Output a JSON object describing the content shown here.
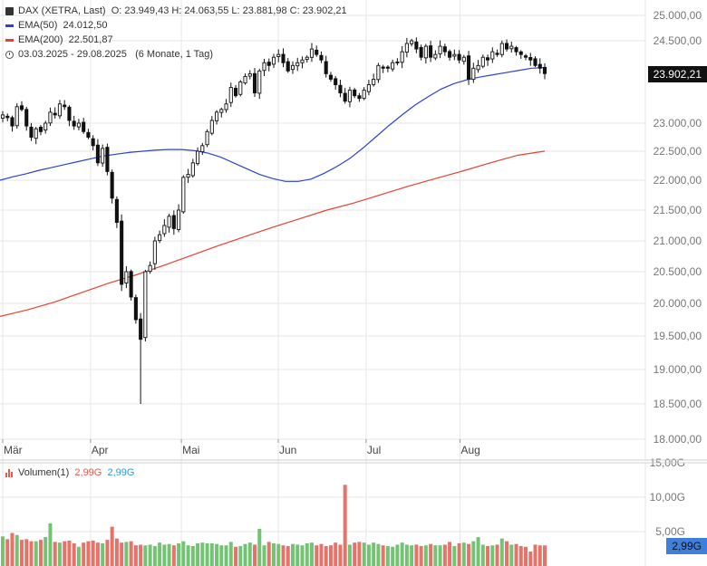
{
  "header": {
    "instrument": "DAX (XETRA, Last)",
    "ohlc": "O: 23.949,43  H: 24.063,55  L: 23.881,98  C: 23.902,21",
    "ema50_label": "EMA(50)",
    "ema50_value": "24.012,50",
    "ema200_label": "EMA(200)",
    "ema200_value": "22.501,87",
    "range": "03.03.2025 - 29.08.2025",
    "period": "(6 Monate, 1 Tag)"
  },
  "last_price_label": "23.902,21",
  "volume_panel": {
    "label": "Volumen(1)",
    "value_red": "2,99G",
    "value_blue": "2,99G",
    "last_volume_label": "2,99G"
  },
  "colors": {
    "up": "#5cb85c",
    "down": "#e05a4f",
    "candle": "#111111",
    "ema50": "#2a41d8",
    "ema200": "#e8412f",
    "grid": "#e6e6e6",
    "axis_text": "#777777"
  },
  "chart_data": {
    "type": "candlestick",
    "title": "DAX (XETRA, Last)",
    "y_ticks": [
      "25.000,00",
      "24.500,00",
      "23.000,00",
      "22.500,00",
      "22.000,00",
      "21.500,00",
      "21.000,00",
      "20.500,00",
      "20.000,00",
      "19.500,00",
      "19.000,00",
      "18.500,00",
      "18.000,00"
    ],
    "y_tick_values": [
      25000,
      24500,
      23000,
      22500,
      22000,
      21500,
      21000,
      20500,
      20000,
      19500,
      19000,
      18500,
      18000
    ],
    "x_ticks": [
      {
        "label": "Mär",
        "date": "2025-03-03"
      },
      {
        "label": "Apr",
        "date": "2025-04-01"
      },
      {
        "label": "Mai",
        "date": "2025-05-01"
      },
      {
        "label": "Jun",
        "date": "2025-06-02"
      },
      {
        "label": "Jul",
        "date": "2025-07-01"
      },
      {
        "label": "Aug",
        "date": "2025-08-01"
      }
    ],
    "date_range": [
      "2025-03-03",
      "2025-08-29"
    ],
    "series": [
      {
        "name": "DAX",
        "type": "candlestick",
        "close": [
          23150,
          23100,
          22950,
          23300,
          23250,
          22950,
          22750,
          22900,
          22850,
          23000,
          23200,
          23150,
          23350,
          23300,
          23050,
          22950,
          23000,
          22850,
          22750,
          22600,
          22300,
          22550,
          22150,
          21700,
          21300,
          20300,
          20500,
          20100,
          19750,
          19450,
          20500,
          20600,
          21000,
          21100,
          21250,
          21400,
          21200,
          21500,
          22050,
          22100,
          22300,
          22500,
          22600,
          22850,
          23050,
          23200,
          23250,
          23350,
          23650,
          23500,
          23750,
          23850,
          23900,
          23550,
          23950,
          24100,
          24050,
          24200,
          24250,
          24100,
          23950,
          24050,
          24100,
          24150,
          24200,
          24350,
          24250,
          24150,
          23900,
          23800,
          23700,
          23550,
          23400,
          23600,
          23500,
          23450,
          23600,
          23700,
          23800,
          24050,
          24000,
          24000,
          24100,
          24100,
          24300,
          24450,
          24500,
          24350,
          24200,
          24400,
          24200,
          24250,
          24400,
          24300,
          24200,
          24250,
          24150,
          24200,
          23800,
          24000,
          24050,
          24200,
          24150,
          24300,
          24250,
          24450,
          24350,
          24400,
          24300,
          24250,
          24200,
          24150,
          24050,
          24000,
          23902.21
        ]
      },
      {
        "name": "EMA(50)",
        "values": [
          22000,
          22060,
          22110,
          22170,
          22220,
          22270,
          22320,
          22370,
          22420,
          22450,
          22480,
          22500,
          22520,
          22530,
          22530,
          22510,
          22470,
          22400,
          22300,
          22200,
          22100,
          22030,
          21980,
          21980,
          22020,
          22120,
          22240,
          22380,
          22560,
          22760,
          22960,
          23150,
          23330,
          23480,
          23620,
          23720,
          23790,
          23840,
          23880,
          23920,
          23960,
          24000,
          24012.5
        ]
      },
      {
        "name": "EMA(200)",
        "values": [
          19800,
          19900,
          20020,
          20170,
          20320,
          20450,
          20600,
          20760,
          20920,
          21070,
          21220,
          21360,
          21500,
          21620,
          21760,
          21900,
          22030,
          22160,
          22300,
          22430,
          22501.87
        ]
      }
    ],
    "volume": {
      "name": "Volumen(1)",
      "y_ticks": [
        "15,00G",
        "10,00G",
        "5,00G"
      ],
      "y_tick_values": [
        15,
        10,
        5
      ],
      "unit": "G",
      "values": [
        4.3,
        3.9,
        4.8,
        4.5,
        3.8,
        3.9,
        3.6,
        3.6,
        3.8,
        4.2,
        6.2,
        3.5,
        3.4,
        3.6,
        3.7,
        3.3,
        2.8,
        3.4,
        3.6,
        3.7,
        3.4,
        3.3,
        3.8,
        5.7,
        4.0,
        3.4,
        3.5,
        3.6,
        3.0,
        3.1,
        3.0,
        3.1,
        2.9,
        3.4,
        3.1,
        3.2,
        3.0,
        3.3,
        3.6,
        3.0,
        2.9,
        3.3,
        3.4,
        3.3,
        3.3,
        3.2,
        3.0,
        3.0,
        3.5,
        2.8,
        2.9,
        3.2,
        3.4,
        3.1,
        5.4,
        3.0,
        3.5,
        3.3,
        3.2,
        3.0,
        2.9,
        3.2,
        3.1,
        3.0,
        3.3,
        3.4,
        3.0,
        3.2,
        2.9,
        3.0,
        3.4,
        3.1,
        11.8,
        3.1,
        3.4,
        3.5,
        3.4,
        3.1,
        3.4,
        3.2,
        3.0,
        2.9,
        2.8,
        3.1,
        3.4,
        3.1,
        3.0,
        3.1,
        2.9,
        3.0,
        3.2,
        3.0,
        3.0,
        3.1,
        3.5,
        2.9,
        3.3,
        3.4,
        3.2,
        3.6,
        4.2,
        3.1,
        2.9,
        3.0,
        3.1,
        4.0,
        3.6,
        3.1,
        3.2,
        2.9,
        2.8,
        2.1,
        3.1,
        3.0,
        2.99
      ]
    }
  }
}
